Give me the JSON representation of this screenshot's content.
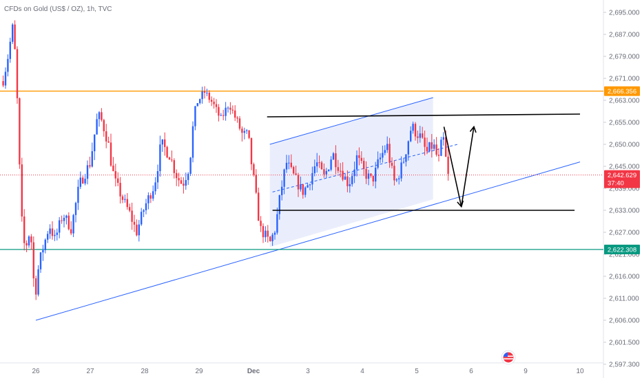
{
  "chart_title": "CFDs on Gold (US$ / OZ), 1h, TVC",
  "colors": {
    "up": "#2962ff",
    "down": "#f23645",
    "resistance": "#ff9800",
    "support": "#089981",
    "channel": "#2962ff",
    "channel_fill": "#e3e8fb",
    "drawing": "#000000",
    "axis_text": "#6a6d78"
  },
  "chart_data": {
    "type": "candlestick",
    "title": "CFDs on Gold (US$ / OZ), 1h, TVC",
    "xlabel": "",
    "ylabel": "",
    "y_ticks": [
      "2,695.000",
      "2,687.000",
      "2,679.000",
      "2,671.000",
      "2,663.000",
      "2,655.000",
      "2,650.000",
      "2,645.000",
      "2,639.000",
      "2,633.000",
      "2,627.000",
      "2,621.000",
      "2,616.000",
      "2,611.000",
      "2,606.000",
      "2,601.500",
      "2,597.300"
    ],
    "y_tick_values": [
      2695,
      2687,
      2679,
      2671,
      2663,
      2655,
      2650,
      2645,
      2639,
      2633,
      2627,
      2621,
      2616,
      2611,
      2606,
      2601.5,
      2597.3
    ],
    "x_ticks": [
      "26",
      "27",
      "28",
      "29",
      "Dec",
      "3",
      "4",
      "5",
      "6",
      "9",
      "10"
    ],
    "x_tick_values": [
      0.6,
      1.6,
      2.6,
      3.6,
      4.6,
      5.6,
      6.6,
      7.6,
      8.6,
      9.6,
      10.6
    ],
    "x_bold_ticks": [
      "Dec"
    ],
    "price_levels": [
      {
        "label": "2,666.356",
        "value": 2666.356,
        "kind": "resistance"
      },
      {
        "label": "2,622.308",
        "value": 2622.308,
        "kind": "support"
      }
    ],
    "current_price": {
      "label": "2,642.629",
      "countdown": "37:40",
      "value": 2642.629
    },
    "grid": false,
    "candle_pivots": [
      [
        0.0,
        2670
      ],
      [
        0.1,
        2680
      ],
      [
        0.17,
        2690
      ],
      [
        0.22,
        2680
      ],
      [
        0.27,
        2658
      ],
      [
        0.33,
        2632
      ],
      [
        0.4,
        2622
      ],
      [
        0.5,
        2628
      ],
      [
        0.58,
        2611
      ],
      [
        0.65,
        2618
      ],
      [
        0.72,
        2622
      ],
      [
        0.85,
        2629
      ],
      [
        0.95,
        2625
      ],
      [
        1.1,
        2632
      ],
      [
        1.25,
        2628
      ],
      [
        1.4,
        2640
      ],
      [
        1.6,
        2646
      ],
      [
        1.75,
        2658
      ],
      [
        1.92,
        2651
      ],
      [
        2.05,
        2641
      ],
      [
        2.2,
        2636
      ],
      [
        2.33,
        2632
      ],
      [
        2.45,
        2627
      ],
      [
        2.6,
        2634
      ],
      [
        2.78,
        2640
      ],
      [
        2.9,
        2650
      ],
      [
        3.05,
        2648
      ],
      [
        3.2,
        2642
      ],
      [
        3.3,
        2640
      ],
      [
        3.42,
        2645
      ],
      [
        3.55,
        2662
      ],
      [
        3.7,
        2666
      ],
      [
        3.85,
        2662
      ],
      [
        4.0,
        2656
      ],
      [
        4.15,
        2662
      ],
      [
        4.28,
        2656
      ],
      [
        4.4,
        2652
      ],
      [
        4.5,
        2652
      ],
      [
        4.6,
        2642
      ],
      [
        4.72,
        2628
      ],
      [
        4.82,
        2626
      ],
      [
        4.9,
        2624
      ],
      [
        5.0,
        2628
      ],
      [
        5.1,
        2638
      ],
      [
        5.2,
        2646
      ],
      [
        5.35,
        2642
      ],
      [
        5.5,
        2638
      ],
      [
        5.6,
        2640
      ],
      [
        5.75,
        2646
      ],
      [
        5.9,
        2642
      ],
      [
        6.05,
        2648
      ],
      [
        6.2,
        2644
      ],
      [
        6.35,
        2640
      ],
      [
        6.5,
        2647
      ],
      [
        6.65,
        2643
      ],
      [
        6.78,
        2641
      ],
      [
        6.9,
        2646
      ],
      [
        7.05,
        2650
      ],
      [
        7.2,
        2640
      ],
      [
        7.35,
        2646
      ],
      [
        7.5,
        2654
      ],
      [
        7.65,
        2652
      ],
      [
        7.78,
        2648
      ],
      [
        7.9,
        2650
      ],
      [
        8.0,
        2646
      ],
      [
        8.08,
        2652
      ],
      [
        8.18,
        2642
      ]
    ]
  },
  "drawings": {
    "channel_lower": [
      [
        0.6,
        2606
      ],
      [
        10.6,
        2646
      ]
    ],
    "channel_upper": [
      [
        4.9,
        2650
      ],
      [
        7.9,
        2664
      ]
    ],
    "horizontal_top": [
      [
        4.85,
        2657
      ],
      [
        10.6,
        2658
      ]
    ],
    "horizontal_bottom": [
      [
        4.95,
        2633
      ],
      [
        10.5,
        2633
      ]
    ],
    "midline": [
      [
        4.95,
        2638
      ],
      [
        8.35,
        2650
      ]
    ],
    "arrow_down": [
      [
        8.1,
        2654
      ],
      [
        8.42,
        2634
      ]
    ],
    "arrow_up": [
      [
        8.42,
        2634
      ],
      [
        8.65,
        2654
      ]
    ]
  }
}
